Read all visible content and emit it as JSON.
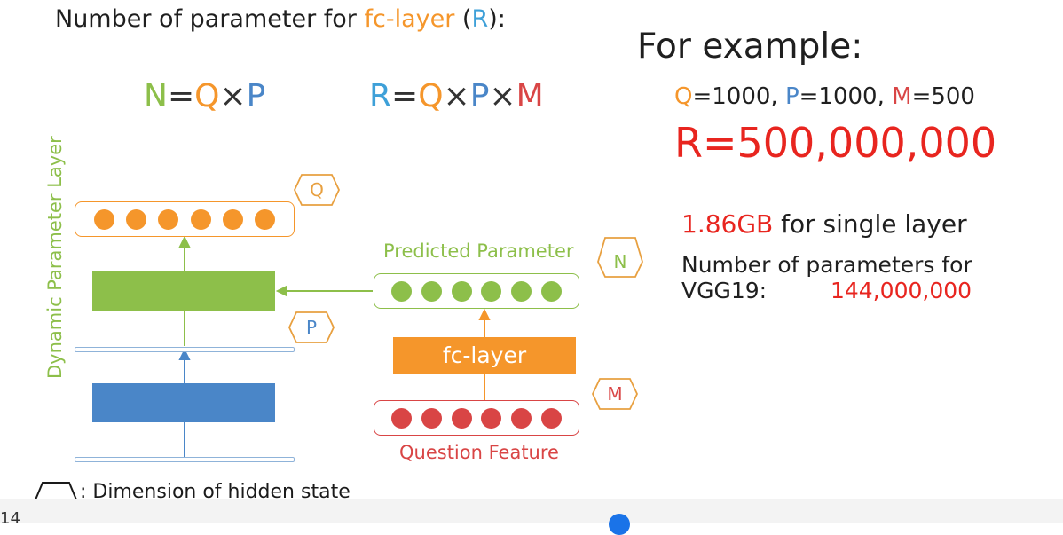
{
  "header": {
    "title_prefix": "Number of parameter for ",
    "title_fc": "fc-layer",
    "title_paren_open": " (",
    "title_r": "R",
    "title_paren_close": "):"
  },
  "formulas": {
    "n_eq": {
      "n": "N",
      "eq": "=",
      "q": "Q",
      "x": "×",
      "p": "P"
    },
    "r_eq": {
      "r": "R",
      "eq": "=",
      "q": "Q",
      "x1": "×",
      "p": "P",
      "x2": "×",
      "m": "M"
    }
  },
  "example": {
    "title": "For example:",
    "q": "Q",
    "q_val": "=1000, ",
    "p": "P",
    "p_val": "=1000, ",
    "m": "M",
    "m_val": "=500",
    "r_value": "R=500,000,000",
    "size_value": "1.86GB",
    "size_text": " for single layer",
    "vgg_line1": "Number of parameters for",
    "vgg_line2": "VGG19:",
    "vgg_value": "144,000,000"
  },
  "diagram": {
    "y_axis_label": "Dynamic Parameter Layer",
    "badge_q": "Q",
    "badge_p": "P",
    "badge_n": "N",
    "badge_m": "M",
    "predicted_label": "Predicted Parameter",
    "fc_label": "fc-layer",
    "question_label": "Question Feature",
    "hidden_note": ": Dimension of hidden state",
    "colors": {
      "orange": "#f5962b",
      "green": "#8dbf4a",
      "blue": "#4a86c8",
      "red": "#d94545",
      "badge": "#e8a040"
    }
  },
  "footer": {
    "page_number": "14"
  }
}
